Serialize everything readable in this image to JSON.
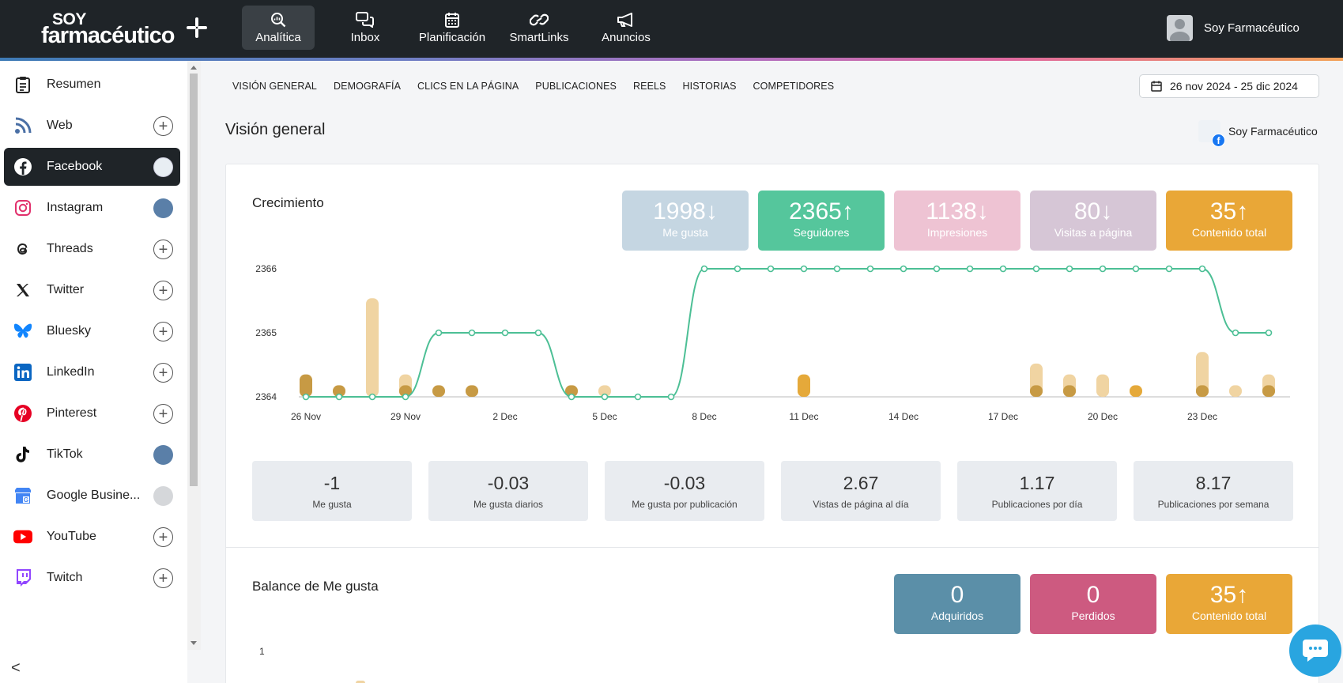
{
  "brand": {
    "line1": "SOY",
    "line2": "farmacéutico"
  },
  "nav": [
    {
      "label": "Analítica",
      "icon": "analytics-icon",
      "active": true
    },
    {
      "label": "Inbox",
      "icon": "inbox-icon",
      "active": false
    },
    {
      "label": "Planificación",
      "icon": "calendar-icon",
      "active": false
    },
    {
      "label": "SmartLinks",
      "icon": "link-icon",
      "active": false
    },
    {
      "label": "Anuncios",
      "icon": "megaphone-icon",
      "active": false
    }
  ],
  "user": {
    "name": "Soy Farmacéutico"
  },
  "sidebar": {
    "items": [
      {
        "label": "Resumen",
        "icon": "clipboard-icon",
        "right": "none"
      },
      {
        "label": "Web",
        "icon": "rss-icon",
        "right": "plus"
      },
      {
        "label": "Facebook",
        "icon": "facebook-icon",
        "right": "avatar",
        "active": true
      },
      {
        "label": "Instagram",
        "icon": "instagram-icon",
        "right": "avatar"
      },
      {
        "label": "Threads",
        "icon": "threads-icon",
        "right": "plus"
      },
      {
        "label": "Twitter",
        "icon": "twitter-x-icon",
        "right": "plus"
      },
      {
        "label": "Bluesky",
        "icon": "bluesky-icon",
        "right": "plus"
      },
      {
        "label": "LinkedIn",
        "icon": "linkedin-icon",
        "right": "plus"
      },
      {
        "label": "Pinterest",
        "icon": "pinterest-icon",
        "right": "plus"
      },
      {
        "label": "TikTok",
        "icon": "tiktok-icon",
        "right": "avatar"
      },
      {
        "label": "Google Busine...",
        "icon": "google-business-icon",
        "right": "avatar-gray"
      },
      {
        "label": "YouTube",
        "icon": "youtube-icon",
        "right": "plus"
      },
      {
        "label": "Twitch",
        "icon": "twitch-icon",
        "right": "plus"
      }
    ],
    "collapse": "<"
  },
  "subnav": [
    "VISIÓN GENERAL",
    "DEMOGRAFÍA",
    "CLICS EN LA PÁGINA",
    "PUBLICACIONES",
    "REELS",
    "HISTORIAS",
    "COMPETIDORES"
  ],
  "date_range": "26 nov 2024 - 25 dic 2024",
  "page_title": "Visión general",
  "account_name": "Soy Farmacéutico",
  "growth": {
    "title": "Crecimiento",
    "stats": [
      {
        "value": "1998",
        "arrow": "↓",
        "label": "Me gusta",
        "color": "#c5d6e2"
      },
      {
        "value": "2365",
        "arrow": "↑",
        "label": "Seguidores",
        "color": "#55c69c"
      },
      {
        "value": "1138",
        "arrow": "↓",
        "label": "Impresiones",
        "color": "#eec3d3"
      },
      {
        "value": "80",
        "arrow": "↓",
        "label": "Visitas a página",
        "color": "#d6c6d6"
      },
      {
        "value": "35",
        "arrow": "↑",
        "label": "Contenido total",
        "color": "#e9a737"
      }
    ],
    "metrics": [
      {
        "value": "-1",
        "label": "Me gusta"
      },
      {
        "value": "-0.03",
        "label": "Me gusta diarios"
      },
      {
        "value": "-0.03",
        "label": "Me gusta por publicación"
      },
      {
        "value": "2.67",
        "label": "Vistas de página al día"
      },
      {
        "value": "1.17",
        "label": "Publicaciones por día"
      },
      {
        "value": "8.17",
        "label": "Publicaciones por semana"
      }
    ]
  },
  "balance": {
    "title": "Balance de Me gusta",
    "stats": [
      {
        "value": "0",
        "arrow": "",
        "label": "Adquiridos",
        "color": "#5b8fa8"
      },
      {
        "value": "0",
        "arrow": "",
        "label": "Perdidos",
        "color": "#cd5a80"
      },
      {
        "value": "35",
        "arrow": "↑",
        "label": "Contenido total",
        "color": "#e9a737"
      }
    ],
    "y_tick": "1"
  },
  "chart_data": {
    "type": "line",
    "x": [
      "26 Nov",
      "27 Nov",
      "28 Nov",
      "29 Nov",
      "30 Nov",
      "1 Dec",
      "2 Dec",
      "3 Dec",
      "4 Dec",
      "5 Dec",
      "6 Dec",
      "7 Dec",
      "8 Dec",
      "9 Dec",
      "10 Dec",
      "11 Dec",
      "12 Dec",
      "13 Dec",
      "14 Dec",
      "15 Dec",
      "16 Dec",
      "17 Dec",
      "18 Dec",
      "19 Dec",
      "20 Dec",
      "21 Dec",
      "22 Dec",
      "23 Dec",
      "24 Dec",
      "25 Dec"
    ],
    "x_tick_labels": [
      "26 Nov",
      "29 Nov",
      "2 Dec",
      "5 Dec",
      "8 Dec",
      "11 Dec",
      "14 Dec",
      "17 Dec",
      "20 Dec",
      "23 Dec"
    ],
    "y_tick_labels": [
      "2364",
      "2365",
      "2366"
    ],
    "ylim": [
      2364,
      2366
    ],
    "series": [
      {
        "name": "Seguidores",
        "color": "#4cbf95",
        "values": [
          2364,
          2364,
          2364,
          2364,
          2365,
          2365,
          2365,
          2365,
          2364,
          2364,
          2364,
          2364,
          2366,
          2366,
          2366,
          2366,
          2366,
          2366,
          2366,
          2366,
          2366,
          2366,
          2366,
          2366,
          2366,
          2366,
          2366,
          2366,
          2365,
          2365
        ]
      }
    ],
    "bars": {
      "light_color": "#f0d4a2",
      "dark_color": "#c79a44",
      "mid_color": "#e5a93a",
      "items": [
        {
          "i": 0,
          "light": 0,
          "dark": 0.35
        },
        {
          "i": 1,
          "light": 0,
          "dark": 0.18
        },
        {
          "i": 2,
          "light": 1.54,
          "dark": 0
        },
        {
          "i": 3,
          "light": 0.35,
          "dark": 0.18
        },
        {
          "i": 4,
          "light": 0,
          "dark": 0.18
        },
        {
          "i": 5,
          "light": 0,
          "dark": 0.18
        },
        {
          "i": 8,
          "light": 0,
          "dark": 0.18
        },
        {
          "i": 9,
          "light": 0.18,
          "dark": 0
        },
        {
          "i": 15,
          "light": 0,
          "dark": 0.35,
          "mid": true
        },
        {
          "i": 22,
          "light": 0.52,
          "dark": 0.18
        },
        {
          "i": 23,
          "light": 0.35,
          "dark": 0.18
        },
        {
          "i": 24,
          "light": 0.35,
          "dark": 0
        },
        {
          "i": 25,
          "light": 0,
          "dark": 0.18,
          "mid": true
        },
        {
          "i": 27,
          "light": 0.7,
          "dark": 0.18
        },
        {
          "i": 28,
          "light": 0.18,
          "dark": 0
        },
        {
          "i": 29,
          "light": 0.35,
          "dark": 0.18
        }
      ]
    }
  }
}
